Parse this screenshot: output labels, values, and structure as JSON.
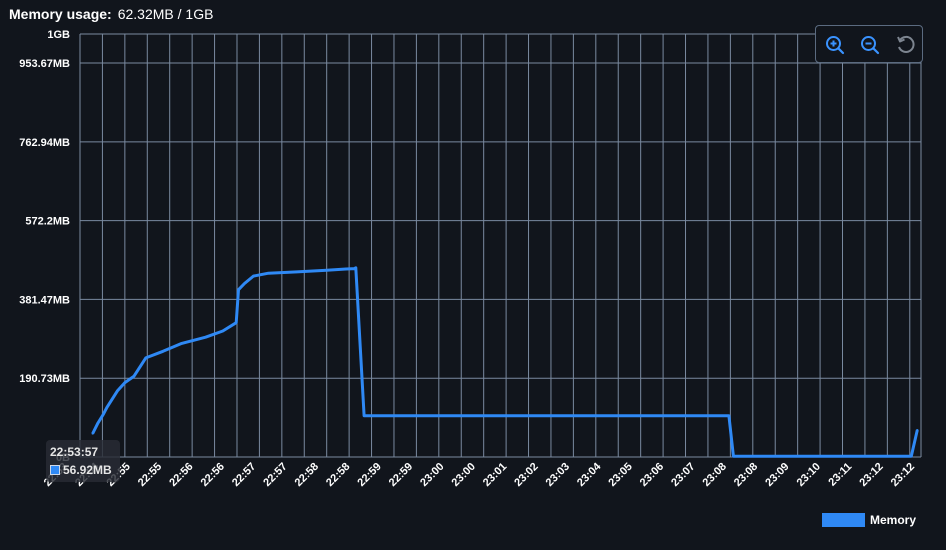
{
  "header": {
    "label": "Memory usage:",
    "value": "62.32MB / 1GB"
  },
  "toolbar": {
    "zoom_in": "zoom-in-icon",
    "zoom_out": "zoom-out-icon",
    "reset": "reset-icon"
  },
  "tooltip": {
    "time": "22:53:57",
    "value": "56.92MB"
  },
  "colors": {
    "series": "#2f89f5",
    "grid": "#7a8aa0",
    "background": "#11151c"
  },
  "chart_data": {
    "type": "line",
    "title": "",
    "xlabel": "",
    "ylabel": "",
    "y_ticks": [
      "1GB",
      "953.67MB",
      "762.94MB",
      "572.2MB",
      "381.47MB",
      "190.73MB",
      "0B"
    ],
    "y_tick_values": [
      1024,
      953.67,
      762.94,
      572.2,
      381.47,
      190.73,
      0
    ],
    "ylim": [
      0,
      1024
    ],
    "xlim": [
      "22:53:40",
      "23:12:25"
    ],
    "x_ticks": [
      "22:53",
      "22:54",
      "22:55",
      "22:56",
      "22:57",
      "22:58",
      "22:59",
      "23:00",
      "23:01",
      "23:02",
      "23:03",
      "23:04",
      "23:05",
      "23:06",
      "23:07",
      "23:08",
      "23:09",
      "23:10",
      "23:11",
      "23:12",
      "22:55",
      "22:56",
      "22:57",
      "22:57",
      "22:58",
      "22:58",
      "22:59",
      "22:59",
      "23:00",
      "23:00",
      "23:01",
      "23:02",
      "23:03",
      "23:04",
      "23:05",
      "23:06",
      "23:07",
      "23:08",
      "23:08",
      "23:09"
    ],
    "x_labels": [
      "22:53",
      "22:54",
      "22:55",
      "22:55",
      "22:56",
      "22:56",
      "22:57",
      "22:57",
      "22:58",
      "22:58",
      "22:59",
      "22:59",
      "23:00",
      "23:00",
      "23:01",
      "23:02",
      "23:03",
      "23:04",
      "23:05",
      "23:06",
      "23:07",
      "23:08",
      "23:08",
      "23:09",
      "23:10",
      "23:11",
      "23:12",
      "23:12"
    ],
    "grid": true,
    "legend": "bottom-right",
    "series": [
      {
        "name": "Memory",
        "x": [
          "22:53:57",
          "22:54:04",
          "22:54:11",
          "22:54:16",
          "22:54:30",
          "22:54:40",
          "22:54:52",
          "22:55:08",
          "22:55:31",
          "22:55:56",
          "22:56:28",
          "22:56:51",
          "22:57:09",
          "22:57:12",
          "22:57:20",
          "22:57:32",
          "22:57:52",
          "22:58:30",
          "22:59:10",
          "22:59:36",
          "22:59:47",
          "22:59:49",
          "23:00:00",
          "23:01:00",
          "23:05:00",
          "23:08:00",
          "23:08:08",
          "23:08:14",
          "23:09:00",
          "23:12:00",
          "23:12:12",
          "23:12:20"
        ],
        "y": [
          56.92,
          82,
          103,
          120,
          160,
          180,
          195,
          240,
          256,
          275,
          290,
          305,
          325,
          405,
          420,
          438,
          445,
          448,
          452,
          455,
          456,
          458,
          100,
          100,
          100,
          100,
          100,
          2,
          2,
          2,
          2,
          65
        ]
      }
    ]
  },
  "legend": {
    "label": "Memory"
  }
}
